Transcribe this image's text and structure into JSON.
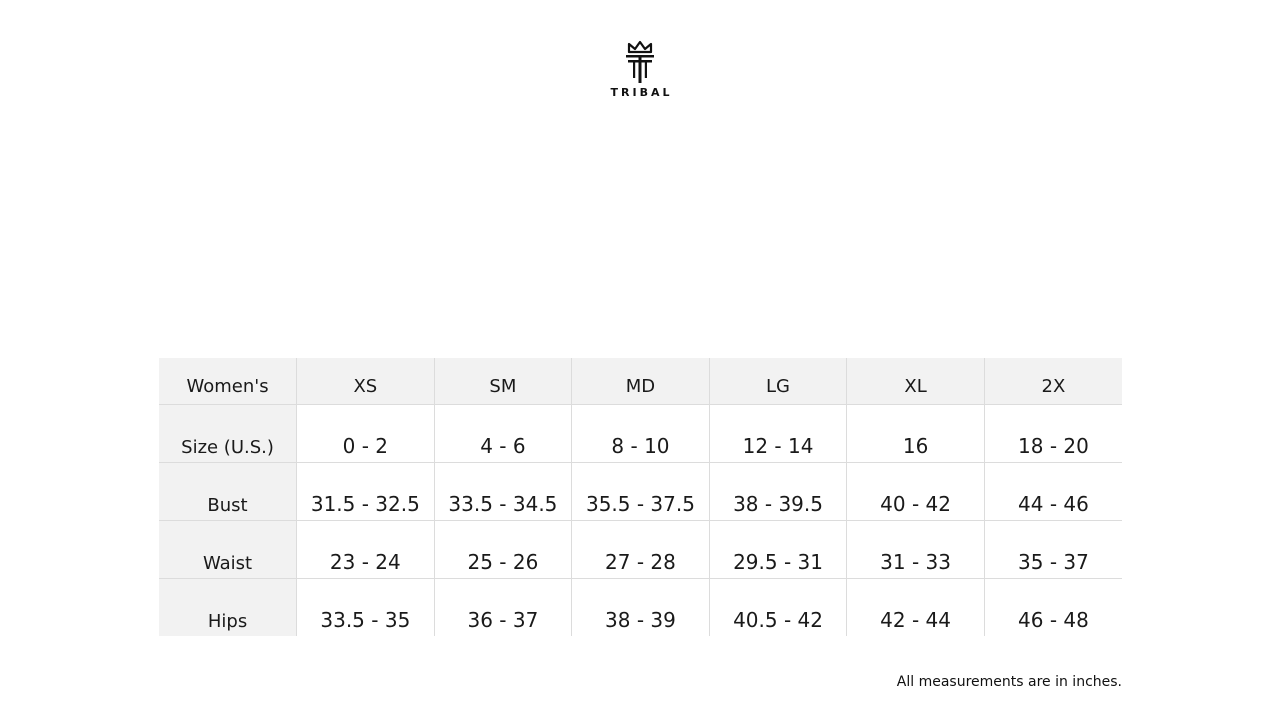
{
  "brand": {
    "name": "TRIBAL",
    "logo_icon": "crown-t-logo-icon"
  },
  "table": {
    "header": [
      "Women's",
      "XS",
      "SM",
      "MD",
      "LG",
      "XL",
      "2X"
    ],
    "rows": [
      {
        "label": "Size (U.S.)",
        "values": [
          "0 - 2",
          "4 - 6",
          "8 - 10",
          "12 - 14",
          "16",
          "18 - 20"
        ]
      },
      {
        "label": "Bust",
        "values": [
          "31.5 - 32.5",
          "33.5 - 34.5",
          "35.5 - 37.5",
          "38 - 39.5",
          "40 - 42",
          "44 - 46"
        ]
      },
      {
        "label": "Waist",
        "values": [
          "23 - 24",
          "25 - 26",
          "27 - 28",
          "29.5 - 31",
          "31 - 33",
          "35 - 37"
        ]
      },
      {
        "label": "Hips",
        "values": [
          "33.5 - 35",
          "36 - 37",
          "38 - 39",
          "40.5 - 42",
          "42 - 44",
          "46 - 48"
        ]
      }
    ]
  },
  "footnote": "All measurements are in inches.",
  "colors": {
    "header_bg": "#f2f2f2",
    "border": "#dcdcdc",
    "text": "#111111"
  }
}
